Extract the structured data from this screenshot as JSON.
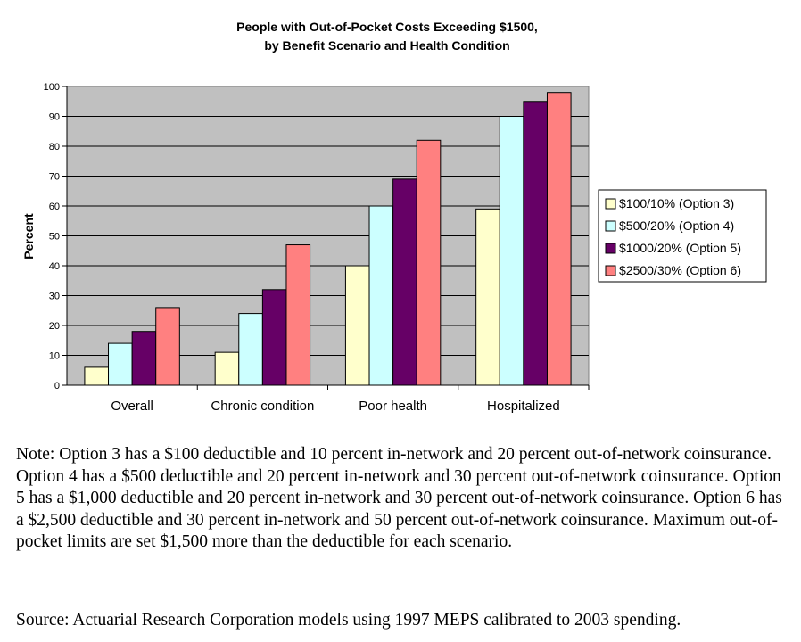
{
  "chart_data": {
    "type": "bar",
    "title": [
      "People with Out-of-Pocket Costs Exceeding $1500,",
      "by Benefit Scenario and Health Condition"
    ],
    "ylabel": "Percent",
    "xlabel": "",
    "ylim": [
      0,
      100
    ],
    "yticks": [
      0,
      10,
      20,
      30,
      40,
      50,
      60,
      70,
      80,
      90,
      100
    ],
    "grid": true,
    "legend_position": "right",
    "plot_background": "#c0c0c0",
    "categories": [
      "Overall",
      "Chronic condition",
      "Poor health",
      "Hospitalized"
    ],
    "series": [
      {
        "name": "$100/10% (Option 3)",
        "color": "#ffffcc",
        "values": [
          6,
          11,
          40,
          59
        ]
      },
      {
        "name": "$500/20% (Option 4)",
        "color": "#ccffff",
        "values": [
          14,
          24,
          60,
          90
        ]
      },
      {
        "name": "$1000/20% (Option 5)",
        "color": "#660066",
        "values": [
          18,
          32,
          69,
          95
        ]
      },
      {
        "name": "$2500/30% (Option 6)",
        "color": "#ff8080",
        "values": [
          26,
          47,
          82,
          98
        ]
      }
    ]
  },
  "note": "Note:  Option 3 has a $100 deductible and 10 percent in-network and 20 percent out-of-network coinsurance.  Option 4 has a $500 deductible and 20 percent in-network and 30 percent out-of-network coinsurance.  Option 5 has a $1,000 deductible and 20 percent in-network and 30 percent out-of-network coinsurance.  Option 6 has a $2,500 deductible and 30 percent in-network and 50 percent out-of-network coinsurance.  Maximum out-of-pocket limits are set $1,500 more than the deductible for each scenario.",
  "source": "Source:  Actuarial Research Corporation models using 1997 MEPS calibrated to 2003 spending."
}
